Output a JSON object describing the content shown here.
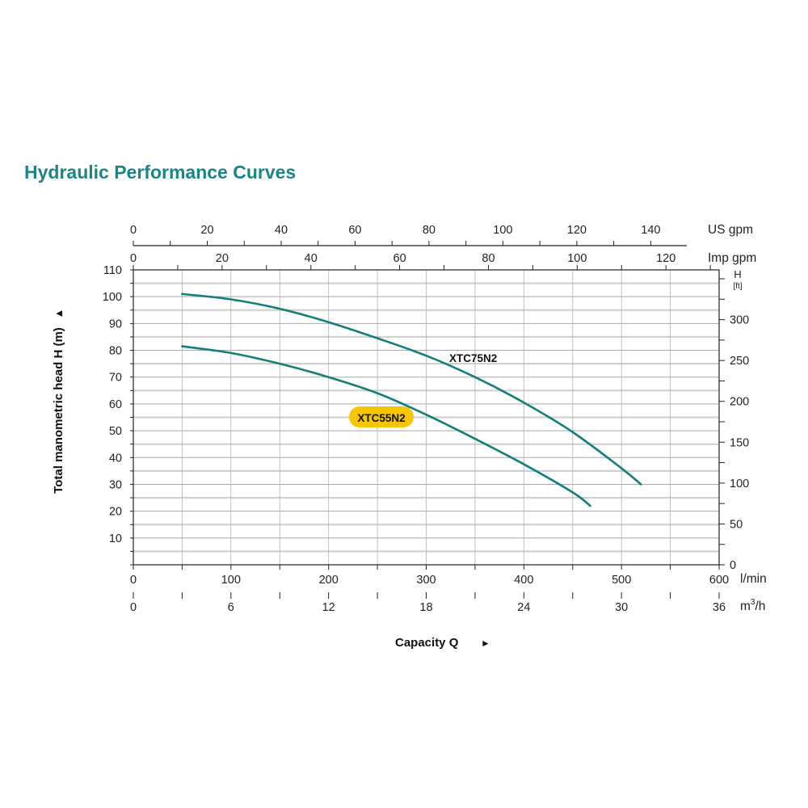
{
  "chart_data": {
    "type": "line",
    "title": "Hydraulic Performance Curves",
    "xlabel": "Capacity Q",
    "ylabel": "Total manometric head H (m)",
    "xlim": [
      0,
      600
    ],
    "ylim": [
      0,
      110
    ],
    "grid": true,
    "x_axis": {
      "unit": "l/min",
      "ticks": [
        0,
        100,
        200,
        300,
        400,
        500,
        600
      ]
    },
    "x_axis_m3h": {
      "unit": "m³/h",
      "unit_base": "m",
      "unit_sup": "3",
      "unit_tail": "/h",
      "ticks": [
        0,
        6,
        12,
        18,
        24,
        30,
        36
      ],
      "max": 36
    },
    "top_axis_us": {
      "unit": "US gpm",
      "ticks": [
        0,
        20,
        40,
        60,
        80,
        100,
        120,
        140
      ],
      "factor_per_lmin": 0.264172
    },
    "top_axis_imp": {
      "unit": "Imp gpm",
      "ticks": [
        0,
        20,
        40,
        60,
        80,
        100,
        120
      ],
      "factor_per_lmin": 0.219969
    },
    "y_axis": {
      "ticks": [
        10,
        20,
        30,
        40,
        50,
        60,
        70,
        80,
        90,
        100,
        110
      ]
    },
    "y_axis_right": {
      "unit": "H",
      "unit_sub": "[ft]",
      "ticks": [
        0,
        50,
        100,
        150,
        200,
        250,
        300
      ],
      "factor_per_m": 3.28084
    },
    "series": [
      {
        "name": "XTC75N2",
        "color": "#137f7c",
        "label_style": "plain",
        "x": [
          50,
          100,
          150,
          200,
          250,
          300,
          350,
          400,
          450,
          500,
          520
        ],
        "y": [
          101,
          99,
          95.5,
          90.5,
          84.5,
          78,
          70,
          60.5,
          49.5,
          36,
          30
        ]
      },
      {
        "name": "XTC55N2",
        "color": "#137f7c",
        "label_style": "badge",
        "badge_color": "#f7c600",
        "x": [
          50,
          100,
          150,
          200,
          250,
          300,
          350,
          400,
          450,
          468
        ],
        "y": [
          81.5,
          79,
          75,
          70,
          64,
          56,
          47,
          37.5,
          27,
          22
        ]
      }
    ]
  }
}
